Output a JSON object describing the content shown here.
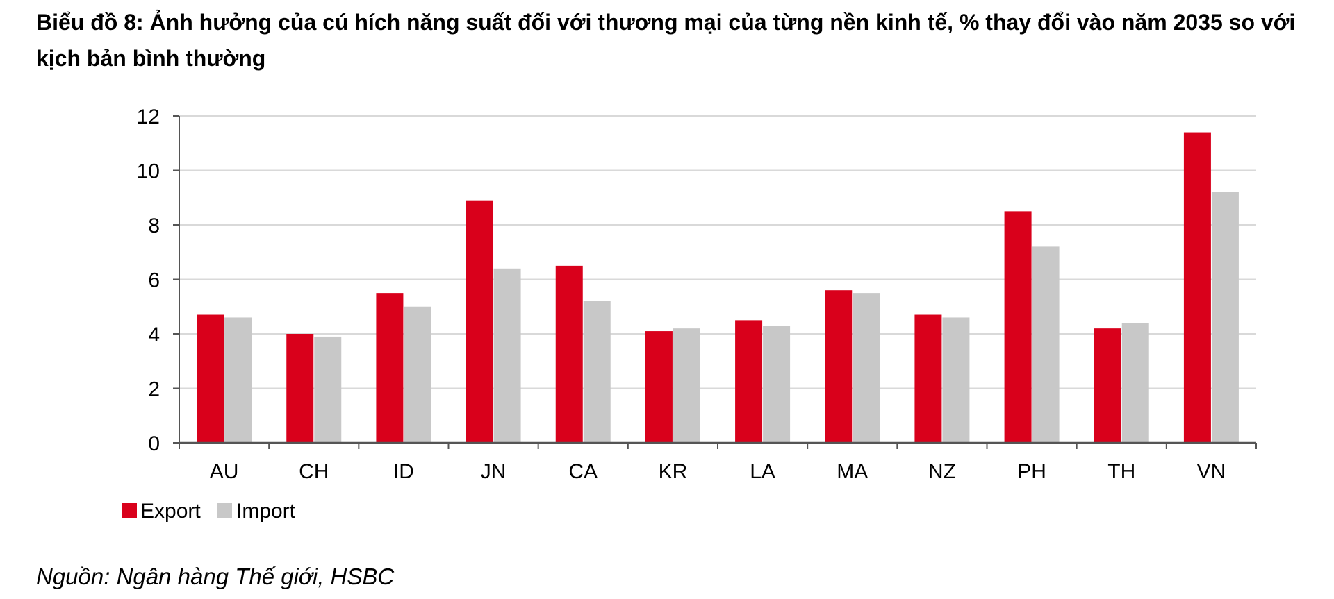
{
  "title": "Biểu đồ 8: Ảnh hưởng của cú hích năng suất đối với thương mại của từng nền kinh tế, % thay đổi vào năm 2035 so với kịch bản bình thường",
  "source": "Nguồn: Ngân hàng Thế giới, HSBC",
  "colors": {
    "export": "#d9001b",
    "import": "#c8c8c8",
    "grid": "#d9d9d9",
    "axis": "#555555"
  },
  "chart_data": {
    "type": "bar",
    "categories": [
      "AU",
      "CH",
      "ID",
      "JN",
      "CA",
      "KR",
      "LA",
      "MA",
      "NZ",
      "PH",
      "TH",
      "VN"
    ],
    "series": [
      {
        "name": "Export",
        "values": [
          4.7,
          4.0,
          5.5,
          8.9,
          6.5,
          4.1,
          4.5,
          5.6,
          4.7,
          8.5,
          4.2,
          11.4
        ]
      },
      {
        "name": "Import",
        "values": [
          4.6,
          3.9,
          5.0,
          6.4,
          5.2,
          4.2,
          4.3,
          5.5,
          4.6,
          7.2,
          4.4,
          9.2
        ]
      }
    ],
    "ylim": [
      0,
      12
    ],
    "yticks": [
      0,
      2,
      4,
      6,
      8,
      10,
      12
    ],
    "grid": true,
    "legend_position": "bottom-left"
  }
}
